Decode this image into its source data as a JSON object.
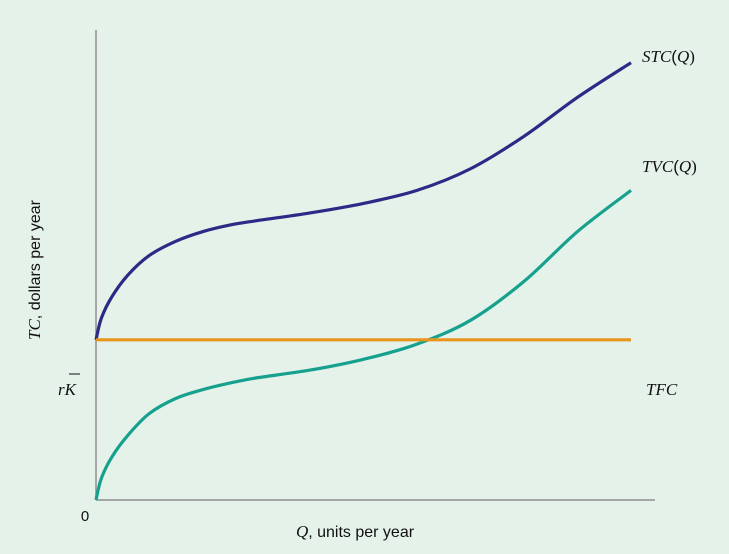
{
  "chart_data": {
    "type": "line",
    "xlabel": {
      "var": "Q",
      "rest": ", units per year"
    },
    "ylabel": {
      "var": "TC",
      "rest": ", dollars per year"
    },
    "origin_label": "0",
    "fixed_cost_label": {
      "r": "r",
      "k": "K"
    },
    "xlim": [
      0,
      100
    ],
    "ylim": [
      0,
      100
    ],
    "grid": false,
    "series": [
      {
        "name": "STC(Q)",
        "label_var": "STC",
        "label_paren": "(Q)",
        "color": "#2b2a86",
        "points": [
          [
            0,
            37
          ],
          [
            1,
            42
          ],
          [
            3,
            47
          ],
          [
            6,
            52
          ],
          [
            10,
            56.5
          ],
          [
            15,
            59.8
          ],
          [
            20,
            62
          ],
          [
            25,
            63.5
          ],
          [
            30,
            64.5
          ],
          [
            40,
            66.3
          ],
          [
            50,
            68.5
          ],
          [
            60,
            71.5
          ],
          [
            70,
            76.5
          ],
          [
            80,
            84
          ],
          [
            90,
            93
          ],
          [
            100,
            101
          ]
        ]
      },
      {
        "name": "TVC(Q)",
        "label_var": "TVC",
        "label_paren": "(Q)",
        "color": "#16a18e",
        "points": [
          [
            0,
            0
          ],
          [
            1,
            5
          ],
          [
            3,
            10
          ],
          [
            6,
            15
          ],
          [
            10,
            20
          ],
          [
            15,
            23.5
          ],
          [
            20,
            25.5
          ],
          [
            25,
            27
          ],
          [
            30,
            28.2
          ],
          [
            40,
            30
          ],
          [
            50,
            32.5
          ],
          [
            60,
            36
          ],
          [
            70,
            41.5
          ],
          [
            80,
            50.5
          ],
          [
            90,
            62
          ],
          [
            100,
            71.5
          ]
        ]
      },
      {
        "name": "TFC",
        "label_var": "TFC",
        "label_paren": "",
        "color": "#e8951e",
        "points": [
          [
            0,
            37
          ],
          [
            100,
            37
          ]
        ]
      }
    ]
  }
}
